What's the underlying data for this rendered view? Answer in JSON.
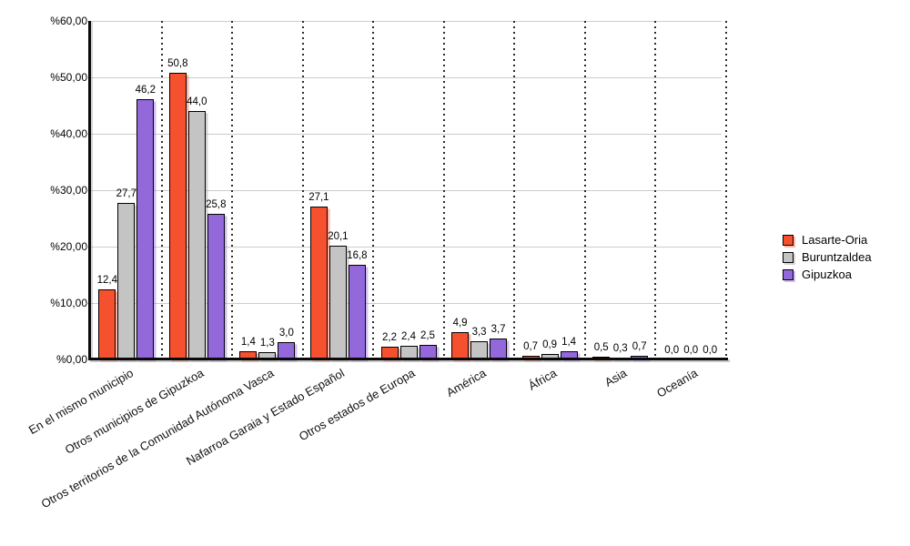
{
  "chart_data": {
    "type": "bar",
    "title": "",
    "categories": [
      "En el mismo municipio",
      "Otros municipios de Gipuzkoa",
      "Otros territorios de la Comunidad Autónoma Vasca",
      "Nafarroa Garaia y Estado Español",
      "Otros estados de Europa",
      "América",
      "África",
      "Asia",
      "Oceanía"
    ],
    "series": [
      {
        "name": "Lasarte-Oria",
        "color": "#f6512f",
        "shadow_color": "rgba(246,81,47,0.42)",
        "values": [
          12.4,
          50.8,
          1.4,
          27.1,
          2.2,
          4.9,
          0.7,
          0.5,
          0.0
        ],
        "labels": [
          "12,4",
          "50,8",
          "1,4",
          "27,1",
          "2,2",
          "4,9",
          "0,7",
          "0,5",
          "0,0"
        ]
      },
      {
        "name": "Buruntzaldea",
        "color": "#c4c4c4",
        "shadow_color": "rgba(165,165,165,0.45)",
        "values": [
          27.7,
          44.0,
          1.3,
          20.1,
          2.4,
          3.3,
          0.9,
          0.3,
          0.0
        ],
        "labels": [
          "27,7",
          "44,0",
          "1,3",
          "20,1",
          "2,4",
          "3,3",
          "0,9",
          "0,3",
          "0,0"
        ]
      },
      {
        "name": "Gipuzkoa",
        "color": "#9268db",
        "shadow_color": "rgba(146,104,219,0.42)",
        "values": [
          46.2,
          25.8,
          3.0,
          16.8,
          2.5,
          3.7,
          1.4,
          0.7,
          0.0
        ],
        "labels": [
          "46,2",
          "25,8",
          "3,0",
          "16,8",
          "2,5",
          "3,7",
          "1,4",
          "0,7",
          "0,0"
        ]
      }
    ],
    "y_axis": {
      "min": 0,
      "max": 60,
      "step": 10,
      "tick_labels": [
        "%0,00",
        "%10,00",
        "%20,00",
        "%30,00",
        "%40,00",
        "%50,00",
        "%60,00"
      ]
    },
    "x_axis": {
      "label_rotation_deg": -30
    },
    "legend": {
      "position": "right",
      "items": [
        "Lasarte-Oria",
        "Buruntzaldea",
        "Gipuzkoa"
      ]
    },
    "grid": {
      "horizontal": true,
      "vertical": "dotted"
    },
    "axis_color": "#0a0a0a",
    "gridline_color": "#cccccc"
  }
}
